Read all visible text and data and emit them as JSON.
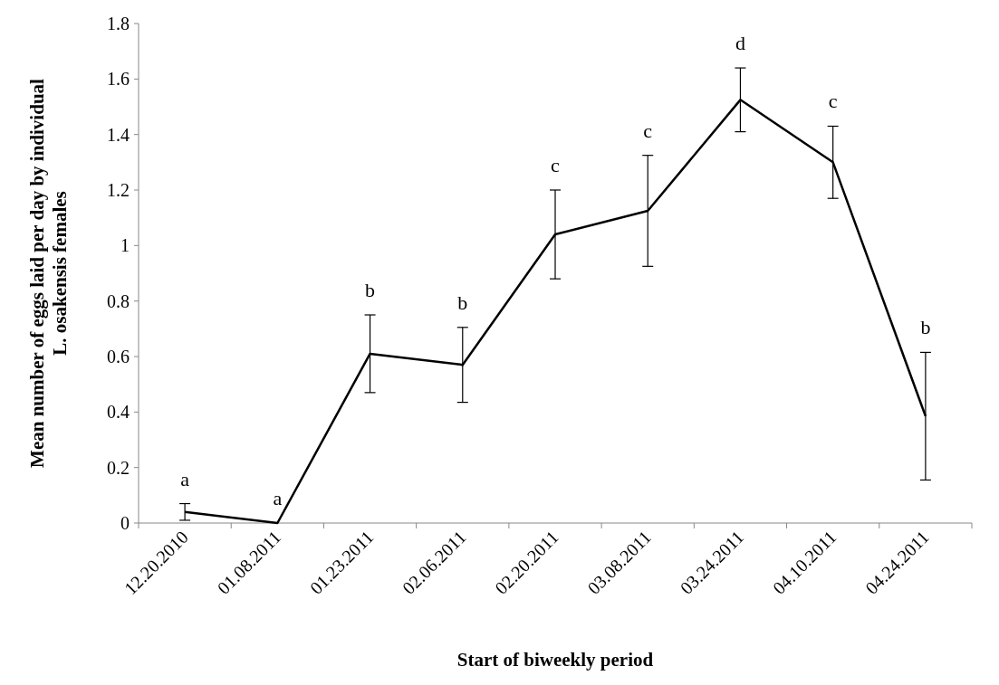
{
  "chart_data": {
    "type": "line",
    "xlabel": "Start of biweekly period",
    "ylabel": "Mean number of eggs laid per day by individual L. osakensis females",
    "categories": [
      "12.20.2010",
      "01.08.2011",
      "01.23.2011",
      "02.06.2011",
      "02.20.2011",
      "03.08.2011",
      "03.24.2011",
      "04.10.2011",
      "04.24.2011"
    ],
    "series": [
      {
        "color": "#000000",
        "values": [
          0.04,
          0,
          0.61,
          0.57,
          1.04,
          1.125,
          1.525,
          1.3,
          0.385
        ],
        "errors": [
          0.03,
          null,
          0.14,
          0.135,
          0.16,
          0.2,
          0.115,
          0.13,
          0.23
        ]
      }
    ],
    "ylim": [
      0,
      1.8
    ],
    "yticks": [
      0,
      0.2,
      0.4,
      0.6,
      0.8,
      1,
      1.2,
      1.4,
      1.6,
      1.8
    ],
    "grid": false,
    "marker": "none",
    "line_style": "solid",
    "annotations": [
      {
        "text": "a",
        "x": "12.20.2010",
        "y": 0.07
      },
      {
        "text": "a",
        "x": "01.08.2011",
        "y": 0
      },
      {
        "text": "b",
        "x": "01.23.2011",
        "y": 0.75
      },
      {
        "text": "b",
        "x": "02.06.2011",
        "y": 0.705
      },
      {
        "text": "c",
        "x": "02.20.2011",
        "y": 1.2
      },
      {
        "text": "c",
        "x": "03.08.2011",
        "y": 1.325
      },
      {
        "text": "d",
        "x": "03.24.2011",
        "y": 1.64
      },
      {
        "text": "c",
        "x": "04.10.2011",
        "y": 1.43
      },
      {
        "text": "b",
        "x": "04.24.2011",
        "y": 0.615
      }
    ]
  }
}
